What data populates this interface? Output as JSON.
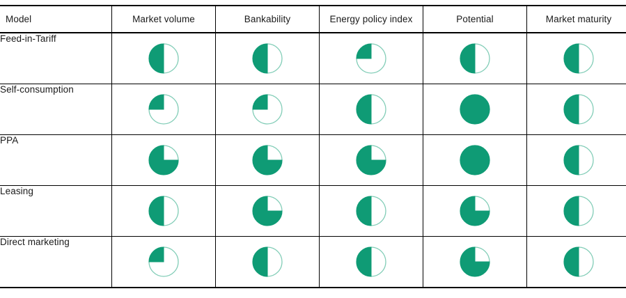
{
  "colors": {
    "ball_fill": "#0f9b75",
    "ball_ring": "#82cdb7",
    "border": "#000000",
    "text": "#1a1a1a",
    "background": "#ffffff"
  },
  "table": {
    "columns": [
      {
        "key": "model",
        "label": "Model"
      },
      {
        "key": "market_volume",
        "label": "Market volume"
      },
      {
        "key": "bankability",
        "label": "Bankability"
      },
      {
        "key": "energy_policy_index",
        "label": "Energy policy index"
      },
      {
        "key": "potential",
        "label": "Potential"
      },
      {
        "key": "market_maturity",
        "label": "Market maturity"
      }
    ],
    "rows": [
      {
        "model": "Feed-in-Tariff",
        "ratings": {
          "market_volume": 50,
          "bankability": 50,
          "energy_policy_index": 25,
          "potential": 50,
          "market_maturity": 50
        }
      },
      {
        "model": "Self-consumption",
        "ratings": {
          "market_volume": 25,
          "bankability": 25,
          "energy_policy_index": 50,
          "potential": 100,
          "market_maturity": 50
        }
      },
      {
        "model": "PPA",
        "ratings": {
          "market_volume": 75,
          "bankability": 75,
          "energy_policy_index": 75,
          "potential": 100,
          "market_maturity": 50
        }
      },
      {
        "model": "Leasing",
        "ratings": {
          "market_volume": 50,
          "bankability": 75,
          "energy_policy_index": 50,
          "potential": 75,
          "market_maturity": 50
        }
      },
      {
        "model": "Direct marketing",
        "ratings": {
          "market_volume": 25,
          "bankability": 50,
          "energy_policy_index": 50,
          "potential": 75,
          "market_maturity": 50
        }
      }
    ]
  },
  "chart_data": {
    "type": "table",
    "title": "",
    "categories": [
      "Feed-in-Tariff",
      "Self-consumption",
      "PPA",
      "Leasing",
      "Direct marketing"
    ],
    "series": [
      {
        "name": "Market volume",
        "values": [
          50,
          25,
          75,
          50,
          25
        ]
      },
      {
        "name": "Bankability",
        "values": [
          50,
          25,
          75,
          75,
          50
        ]
      },
      {
        "name": "Energy policy index",
        "values": [
          25,
          50,
          75,
          50,
          50
        ]
      },
      {
        "name": "Potential",
        "values": [
          50,
          100,
          100,
          75,
          75
        ]
      },
      {
        "name": "Market maturity",
        "values": [
          50,
          50,
          50,
          50,
          50
        ]
      }
    ],
    "units": "percent filled (Harvey ball)",
    "fill_direction": "counterclockwise-from-top",
    "legend_position": "none",
    "grid": "table-borders"
  }
}
